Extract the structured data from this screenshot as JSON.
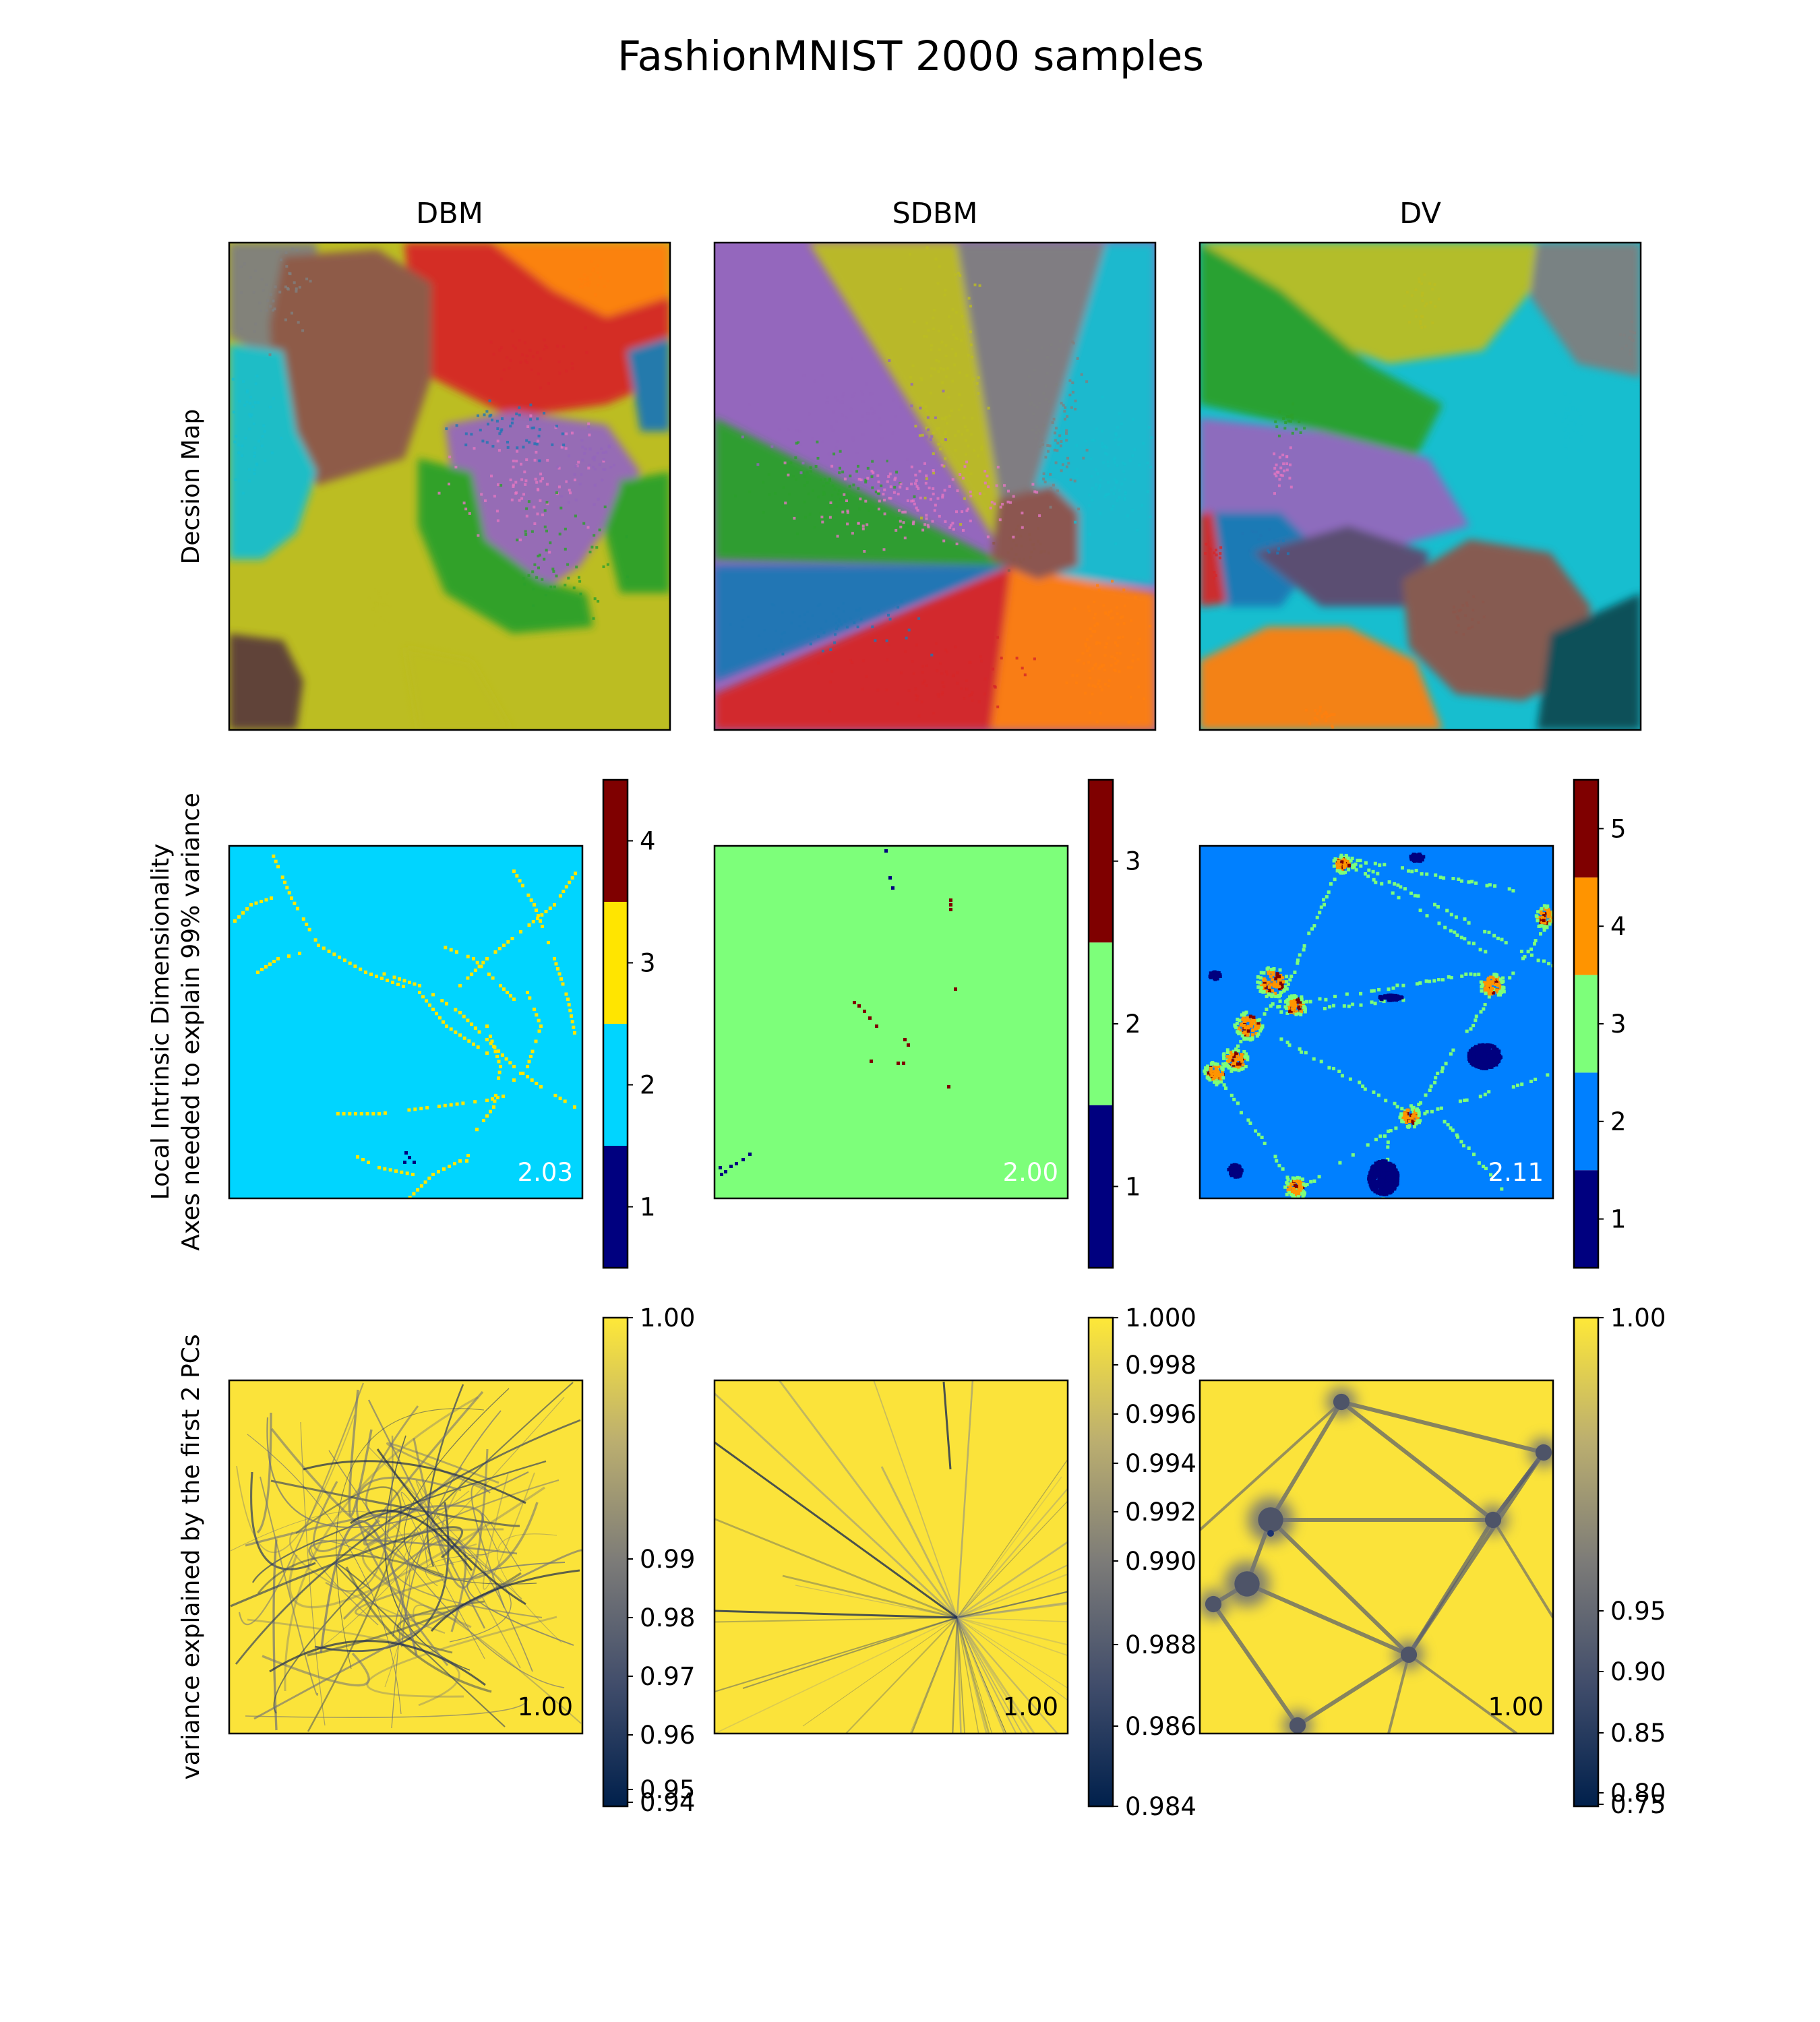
{
  "chart_data": {
    "type": "heatmap",
    "title": "FashionMNIST 2000 samples",
    "columns": [
      "DBM",
      "SDBM",
      "DV"
    ],
    "row_labels": {
      "decision_map": "Decsion Map",
      "lid": [
        "Local Intrinsic Dimensionality",
        "Axes needed to explain 99% variance"
      ],
      "variance": "variance explained by the first 2 PCs"
    },
    "panels": {
      "decision_map": [
        {
          "method": "DBM"
        },
        {
          "method": "SDBM"
        },
        {
          "method": "DV"
        }
      ],
      "lid": [
        {
          "method": "DBM",
          "mean": "2.03",
          "colorbar_ticks": [
            "1",
            "2",
            "3",
            "4"
          ],
          "range": [
            0.5,
            4.5
          ],
          "bins": [
            1,
            2,
            3,
            4
          ],
          "bin_colors": [
            "#00007f",
            "#00d5ff",
            "#ffe500",
            "#7f0000"
          ],
          "base_color": "#00d5ff"
        },
        {
          "method": "SDBM",
          "mean": "2.00",
          "colorbar_ticks": [
            "1",
            "2",
            "3"
          ],
          "range": [
            0.5,
            3.5
          ],
          "bins": [
            1,
            2,
            3
          ],
          "bin_colors": [
            "#00007f",
            "#7dff7a",
            "#7f0000"
          ],
          "base_color": "#7dff7a"
        },
        {
          "method": "DV",
          "mean": "2.11",
          "colorbar_ticks": [
            "1",
            "2",
            "3",
            "4",
            "5"
          ],
          "range": [
            0.5,
            5.5
          ],
          "bins": [
            1,
            2,
            3,
            4,
            5
          ],
          "bin_colors": [
            "#00007f",
            "#0080ff",
            "#7dff7a",
            "#ff9400",
            "#7f0000"
          ],
          "base_color": "#0080ff"
        }
      ],
      "variance": [
        {
          "method": "DBM",
          "mean": "1.00",
          "colorbar_ticks": [
            "1.00",
            "0.99",
            "0.98",
            "0.97",
            "0.96",
            "0.95",
            "0.94"
          ],
          "colormap": "cividis"
        },
        {
          "method": "SDBM",
          "mean": "1.00",
          "colorbar_ticks": [
            "1.000",
            "0.998",
            "0.996",
            "0.994",
            "0.992",
            "0.990",
            "0.988",
            "0.986",
            "0.984"
          ],
          "colormap": "cividis"
        },
        {
          "method": "DV",
          "mean": "1.00",
          "colorbar_ticks": [
            "1.00",
            "0.95",
            "0.90",
            "0.85",
            "0.80",
            "0.75"
          ],
          "colormap": "cividis"
        }
      ]
    },
    "class_colors": [
      "#1f77b4",
      "#ff7f0e",
      "#2ca02c",
      "#d62728",
      "#9467bd",
      "#8c564b",
      "#e377c2",
      "#7f7f7f",
      "#bcbd22",
      "#17becf"
    ]
  }
}
